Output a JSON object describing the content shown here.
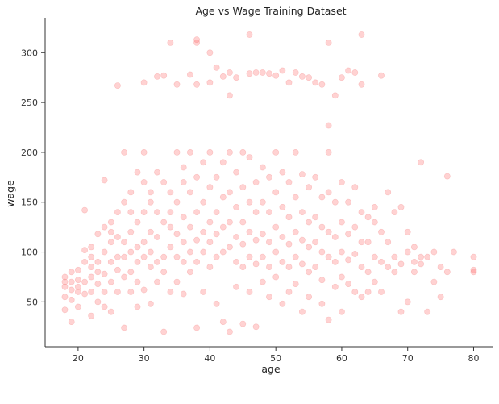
{
  "chart_data": {
    "type": "scatter",
    "title": "Age vs Wage Training Dataset",
    "xlabel": "age",
    "ylabel": "wage",
    "xlim": [
      15,
      83
    ],
    "ylim": [
      5,
      335
    ],
    "xticks": [
      20,
      30,
      40,
      50,
      60,
      70,
      80
    ],
    "yticks": [
      50,
      100,
      150,
      200,
      250,
      300
    ],
    "grid": false,
    "legend": "none",
    "marker_color": "#ff6b6b",
    "marker_edge_color": "#f59a9a",
    "marker_alpha": 0.3,
    "points": [
      [
        18,
        70
      ],
      [
        18,
        65
      ],
      [
        18,
        75
      ],
      [
        18,
        42
      ],
      [
        18,
        55
      ],
      [
        19,
        62
      ],
      [
        19,
        70
      ],
      [
        19,
        30
      ],
      [
        19,
        80
      ],
      [
        19,
        52
      ],
      [
        20,
        72
      ],
      [
        20,
        60
      ],
      [
        20,
        82
      ],
      [
        20,
        45
      ],
      [
        20,
        65
      ],
      [
        21,
        142
      ],
      [
        21,
        90
      ],
      [
        21,
        70
      ],
      [
        21,
        102
      ],
      [
        21,
        58
      ],
      [
        22,
        95
      ],
      [
        22,
        60
      ],
      [
        22,
        85
      ],
      [
        22,
        105
      ],
      [
        22,
        36
      ],
      [
        22,
        75
      ],
      [
        23,
        80
      ],
      [
        23,
        90
      ],
      [
        23,
        118
      ],
      [
        23,
        68
      ],
      [
        23,
        50
      ],
      [
        24,
        172
      ],
      [
        24,
        100
      ],
      [
        24,
        78
      ],
      [
        24,
        125
      ],
      [
        24,
        60
      ],
      [
        24,
        45
      ],
      [
        25,
        110
      ],
      [
        25,
        90
      ],
      [
        25,
        70
      ],
      [
        25,
        130
      ],
      [
        25,
        40
      ],
      [
        25,
        120
      ],
      [
        26,
        267
      ],
      [
        26,
        115
      ],
      [
        26,
        95
      ],
      [
        26,
        140
      ],
      [
        26,
        82
      ],
      [
        26,
        60
      ],
      [
        27,
        200
      ],
      [
        27,
        24
      ],
      [
        27,
        110
      ],
      [
        27,
        150
      ],
      [
        27,
        75
      ],
      [
        27,
        95
      ],
      [
        28,
        160
      ],
      [
        28,
        120
      ],
      [
        28,
        100
      ],
      [
        28,
        80
      ],
      [
        28,
        60
      ],
      [
        28,
        140
      ],
      [
        29,
        180
      ],
      [
        29,
        130
      ],
      [
        29,
        105
      ],
      [
        29,
        90
      ],
      [
        29,
        45
      ],
      [
        29,
        70
      ],
      [
        30,
        200
      ],
      [
        30,
        170
      ],
      [
        30,
        140
      ],
      [
        30,
        110
      ],
      [
        30,
        95
      ],
      [
        30,
        62
      ],
      [
        30,
        270
      ],
      [
        31,
        150
      ],
      [
        31,
        120
      ],
      [
        31,
        100
      ],
      [
        31,
        85
      ],
      [
        31,
        48
      ],
      [
        31,
        160
      ],
      [
        32,
        276
      ],
      [
        32,
        180
      ],
      [
        32,
        140
      ],
      [
        32,
        115
      ],
      [
        32,
        90
      ],
      [
        32,
        70
      ],
      [
        33,
        277
      ],
      [
        33,
        170
      ],
      [
        33,
        130
      ],
      [
        33,
        95
      ],
      [
        33,
        80
      ],
      [
        33,
        20
      ],
      [
        34,
        310
      ],
      [
        34,
        160
      ],
      [
        34,
        125
      ],
      [
        34,
        105
      ],
      [
        34,
        60
      ],
      [
        34,
        140
      ],
      [
        35,
        268
      ],
      [
        35,
        200
      ],
      [
        35,
        150
      ],
      [
        35,
        118
      ],
      [
        35,
        95
      ],
      [
        35,
        70
      ],
      [
        36,
        185
      ],
      [
        36,
        135
      ],
      [
        36,
        110
      ],
      [
        36,
        90
      ],
      [
        36,
        58
      ],
      [
        36,
        170
      ],
      [
        37,
        278
      ],
      [
        37,
        200
      ],
      [
        37,
        160
      ],
      [
        37,
        125
      ],
      [
        37,
        100
      ],
      [
        37,
        80
      ],
      [
        38,
        313
      ],
      [
        38,
        310
      ],
      [
        38,
        268
      ],
      [
        38,
        175
      ],
      [
        38,
        140
      ],
      [
        38,
        112
      ],
      [
        38,
        90
      ],
      [
        38,
        24
      ],
      [
        39,
        190
      ],
      [
        39,
        150
      ],
      [
        39,
        120
      ],
      [
        39,
        100
      ],
      [
        39,
        60
      ],
      [
        40,
        300
      ],
      [
        40,
        270
      ],
      [
        40,
        200
      ],
      [
        40,
        165
      ],
      [
        40,
        130
      ],
      [
        40,
        110
      ],
      [
        40,
        85
      ],
      [
        41,
        285
      ],
      [
        41,
        175
      ],
      [
        41,
        140
      ],
      [
        41,
        118
      ],
      [
        41,
        95
      ],
      [
        41,
        48
      ],
      [
        42,
        276
      ],
      [
        42,
        190
      ],
      [
        42,
        155
      ],
      [
        42,
        125
      ],
      [
        42,
        100
      ],
      [
        42,
        30
      ],
      [
        43,
        257
      ],
      [
        43,
        280
      ],
      [
        43,
        200
      ],
      [
        43,
        160
      ],
      [
        43,
        130
      ],
      [
        43,
        105
      ],
      [
        43,
        20
      ],
      [
        44,
        275
      ],
      [
        44,
        180
      ],
      [
        44,
        145
      ],
      [
        44,
        115
      ],
      [
        44,
        90
      ],
      [
        44,
        65
      ],
      [
        45,
        200
      ],
      [
        45,
        165
      ],
      [
        45,
        130
      ],
      [
        45,
        108
      ],
      [
        45,
        85
      ],
      [
        45,
        28
      ],
      [
        46,
        318
      ],
      [
        46,
        279
      ],
      [
        46,
        195
      ],
      [
        46,
        150
      ],
      [
        46,
        120
      ],
      [
        46,
        95
      ],
      [
        46,
        60
      ],
      [
        47,
        280
      ],
      [
        47,
        170
      ],
      [
        47,
        140
      ],
      [
        47,
        112
      ],
      [
        47,
        88
      ],
      [
        47,
        25
      ],
      [
        48,
        280
      ],
      [
        48,
        185
      ],
      [
        48,
        150
      ],
      [
        48,
        118
      ],
      [
        48,
        95
      ],
      [
        48,
        70
      ],
      [
        49,
        279
      ],
      [
        49,
        175
      ],
      [
        49,
        140
      ],
      [
        49,
        110
      ],
      [
        49,
        85
      ],
      [
        49,
        55
      ],
      [
        50,
        277
      ],
      [
        50,
        200
      ],
      [
        50,
        160
      ],
      [
        50,
        125
      ],
      [
        50,
        100
      ],
      [
        50,
        75
      ],
      [
        51,
        282
      ],
      [
        51,
        180
      ],
      [
        51,
        145
      ],
      [
        51,
        115
      ],
      [
        51,
        90
      ],
      [
        51,
        48
      ],
      [
        52,
        270
      ],
      [
        52,
        170
      ],
      [
        52,
        135
      ],
      [
        52,
        108
      ],
      [
        52,
        85
      ],
      [
        52,
        60
      ],
      [
        53,
        280
      ],
      [
        53,
        200
      ],
      [
        53,
        155
      ],
      [
        53,
        120
      ],
      [
        53,
        95
      ],
      [
        53,
        68
      ],
      [
        54,
        276
      ],
      [
        54,
        178
      ],
      [
        54,
        140
      ],
      [
        54,
        112
      ],
      [
        54,
        88
      ],
      [
        54,
        40
      ],
      [
        55,
        275
      ],
      [
        55,
        165
      ],
      [
        55,
        130
      ],
      [
        55,
        105
      ],
      [
        55,
        80
      ],
      [
        55,
        55
      ],
      [
        56,
        270
      ],
      [
        56,
        175
      ],
      [
        56,
        135
      ],
      [
        56,
        110
      ],
      [
        56,
        85
      ],
      [
        57,
        268
      ],
      [
        57,
        155
      ],
      [
        57,
        125
      ],
      [
        57,
        100
      ],
      [
        57,
        72
      ],
      [
        57,
        48
      ],
      [
        58,
        310
      ],
      [
        58,
        227
      ],
      [
        58,
        200
      ],
      [
        58,
        160
      ],
      [
        58,
        120
      ],
      [
        58,
        95
      ],
      [
        58,
        32
      ],
      [
        59,
        257
      ],
      [
        59,
        150
      ],
      [
        59,
        115
      ],
      [
        59,
        90
      ],
      [
        59,
        65
      ],
      [
        60,
        275
      ],
      [
        60,
        170
      ],
      [
        60,
        130
      ],
      [
        60,
        100
      ],
      [
        60,
        75
      ],
      [
        60,
        40
      ],
      [
        61,
        282
      ],
      [
        61,
        150
      ],
      [
        61,
        118
      ],
      [
        61,
        92
      ],
      [
        61,
        68
      ],
      [
        62,
        280
      ],
      [
        62,
        165
      ],
      [
        62,
        125
      ],
      [
        62,
        98
      ],
      [
        62,
        60
      ],
      [
        63,
        318
      ],
      [
        63,
        268
      ],
      [
        63,
        140
      ],
      [
        63,
        110
      ],
      [
        63,
        85
      ],
      [
        63,
        55
      ],
      [
        64,
        110
      ],
      [
        64,
        80
      ],
      [
        64,
        135
      ],
      [
        64,
        60
      ],
      [
        65,
        130
      ],
      [
        65,
        95
      ],
      [
        65,
        70
      ],
      [
        65,
        145
      ],
      [
        66,
        277
      ],
      [
        66,
        120
      ],
      [
        66,
        90
      ],
      [
        66,
        60
      ],
      [
        67,
        160
      ],
      [
        67,
        110
      ],
      [
        67,
        85
      ],
      [
        68,
        140
      ],
      [
        68,
        95
      ],
      [
        68,
        80
      ],
      [
        69,
        145
      ],
      [
        69,
        88
      ],
      [
        69,
        40
      ],
      [
        70,
        120
      ],
      [
        70,
        100
      ],
      [
        70,
        50
      ],
      [
        71,
        105
      ],
      [
        71,
        90
      ],
      [
        71,
        80
      ],
      [
        72,
        190
      ],
      [
        72,
        95
      ],
      [
        72,
        88
      ],
      [
        73,
        95
      ],
      [
        73,
        40
      ],
      [
        74,
        100
      ],
      [
        74,
        70
      ],
      [
        75,
        85
      ],
      [
        75,
        55
      ],
      [
        76,
        176
      ],
      [
        76,
        80
      ],
      [
        77,
        100
      ],
      [
        80,
        95
      ],
      [
        80,
        82
      ],
      [
        80,
        80
      ]
    ]
  }
}
